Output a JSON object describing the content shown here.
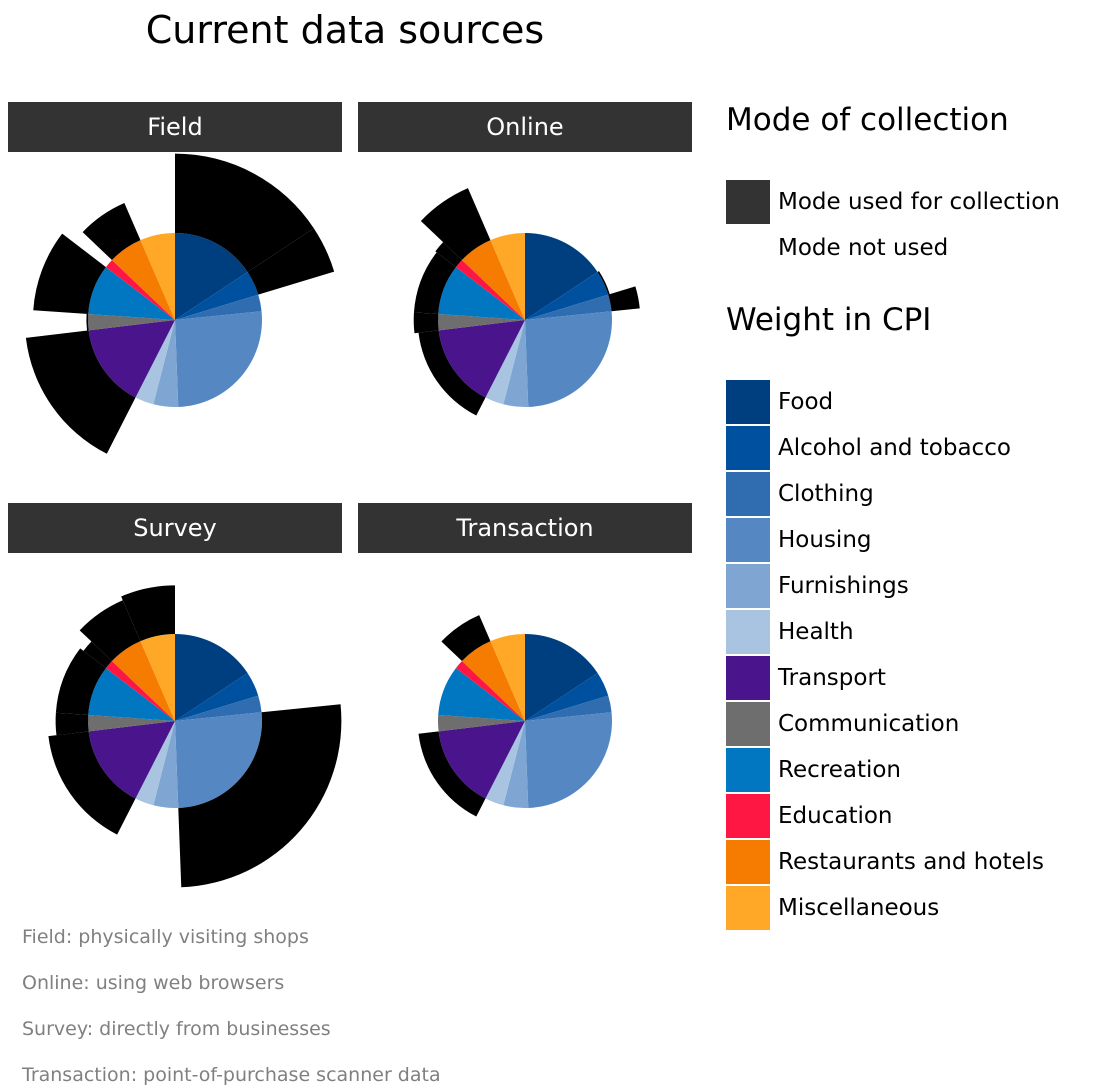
{
  "title": "Current data sources",
  "panels": [
    {
      "name": "Field",
      "note": "Field: physically visiting shops"
    },
    {
      "name": "Online",
      "note": "Online: using web browsers"
    },
    {
      "name": "Survey",
      "note": "Survey: directly from businesses"
    },
    {
      "name": "Transaction",
      "note": "Transaction: point-of-purchase scanner data"
    }
  ],
  "legend": {
    "mode_heading": "Mode of collection",
    "mode_items": [
      {
        "label": "Mode used for collection",
        "color": "#333333"
      },
      {
        "label": "Mode not used",
        "color": "#ffffff"
      }
    ],
    "weight_heading": "Weight in CPI"
  },
  "chart_data": {
    "type": "pie",
    "categories": [
      "Food",
      "Alcohol and tobacco",
      "Clothing",
      "Housing",
      "Furnishings",
      "Health",
      "Transport",
      "Communication",
      "Recreation",
      "Education",
      "Restaurants and hotels",
      "Miscellaneous"
    ],
    "colors": [
      "#003f7f",
      "#0050a0",
      "#2f6db0",
      "#5588c2",
      "#7fa5d2",
      "#a8c4e0",
      "#4a148c",
      "#6e6e6e",
      "#0077c0",
      "#ff1744",
      "#f57c00",
      "#ffa726"
    ],
    "weights": [
      0.157,
      0.046,
      0.031,
      0.26,
      0.046,
      0.035,
      0.156,
      0.03,
      0.093,
      0.017,
      0.064,
      0.065
    ],
    "series": [
      {
        "name": "Field",
        "used": [
          0.98,
          0.98,
          0.0,
          0.0,
          0.0,
          0.0,
          0.78,
          0.02,
          0.68,
          0.0,
          0.5,
          0.0
        ]
      },
      {
        "name": "Online",
        "used": [
          0.0,
          0.02,
          0.35,
          0.0,
          0.0,
          0.0,
          0.25,
          0.3,
          0.3,
          0.32,
          0.7,
          0.0
        ]
      },
      {
        "name": "Survey",
        "used": [
          0.0,
          0.0,
          0.0,
          0.98,
          0.0,
          0.0,
          0.5,
          0.4,
          0.4,
          0.35,
          0.55,
          0.6
        ]
      },
      {
        "name": "Transaction",
        "used": [
          0.0,
          0.0,
          0.0,
          0.0,
          0.0,
          0.0,
          0.25,
          0.0,
          0.0,
          0.0,
          0.35,
          0.0
        ]
      }
    ]
  }
}
